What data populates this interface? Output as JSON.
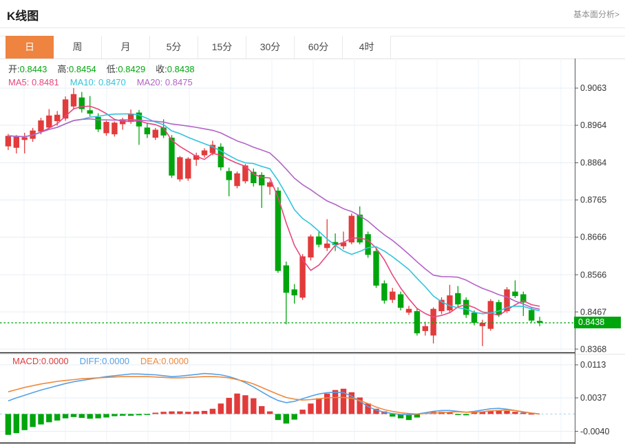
{
  "header": {
    "title": "K线图",
    "link": "基本面分析>"
  },
  "tabs": {
    "items": [
      "日",
      "周",
      "月",
      "5分",
      "15分",
      "30分",
      "60分",
      "4时"
    ],
    "active_index": 0
  },
  "ohlc": {
    "open_label": "开:",
    "open": "0.8443",
    "high_label": "高:",
    "high": "0.8454",
    "low_label": "低:",
    "low": "0.8429",
    "close_label": "收:",
    "close": "0.8438"
  },
  "ma": {
    "ma5_label": "MA5:",
    "ma5": "0.8481",
    "ma10_label": "MA10:",
    "ma10": "0.8470",
    "ma20_label": "MA20:",
    "ma20": "0.8475"
  },
  "macd_header": {
    "macd_label": "MACD:",
    "macd": "0.0000",
    "diff_label": "DIFF:",
    "diff": "0.0000",
    "dea_label": "DEA:",
    "dea": "0.0000"
  },
  "colors": {
    "up": "#e23b3b",
    "down": "#00a50d",
    "ma5": "#e8457c",
    "ma10": "#2ec4dd",
    "ma20": "#b263c6",
    "diff": "#56a0e5",
    "dea": "#f0883a",
    "tab_active": "#ee8440",
    "badge_bg": "#00a50d"
  },
  "chart_data": [
    {
      "type": "candlestick",
      "title": "K线图 (日)",
      "legend": [
        "MA5",
        "MA10",
        "MA20"
      ],
      "y_axis": {
        "ticks": [
          0.9063,
          0.8964,
          0.8864,
          0.8765,
          0.8666,
          0.8566,
          0.8467,
          0.8368
        ]
      },
      "last_price": 0.8438,
      "last_price_label": "0.8438",
      "ma_windows": [
        5,
        10,
        20
      ],
      "candles": [
        [
          0.8908,
          0.8941,
          0.8898,
          0.8936
        ],
        [
          0.8904,
          0.8938,
          0.8889,
          0.8933
        ],
        [
          0.8925,
          0.8944,
          0.8889,
          0.8932
        ],
        [
          0.8928,
          0.8957,
          0.892,
          0.895
        ],
        [
          0.8947,
          0.8984,
          0.894,
          0.8977
        ],
        [
          0.8958,
          0.9007,
          0.8953,
          0.899
        ],
        [
          0.8975,
          0.9002,
          0.8963,
          0.8992
        ],
        [
          0.8982,
          0.9041,
          0.8976,
          0.9033
        ],
        [
          0.9014,
          0.9063,
          0.9006,
          0.9047
        ],
        [
          0.9038,
          0.9053,
          0.8998,
          0.9007
        ],
        [
          0.9004,
          0.9042,
          0.8988,
          0.8995
        ],
        [
          0.8986,
          0.8996,
          0.8946,
          0.8953
        ],
        [
          0.8943,
          0.8976,
          0.8936,
          0.8973
        ],
        [
          0.894,
          0.8974,
          0.8934,
          0.8971
        ],
        [
          0.8967,
          0.8984,
          0.8952,
          0.898
        ],
        [
          0.8973,
          0.9006,
          0.8968,
          0.8995
        ],
        [
          0.8998,
          0.9005,
          0.8912,
          0.8961
        ],
        [
          0.8958,
          0.8969,
          0.893,
          0.894
        ],
        [
          0.8931,
          0.8957,
          0.8925,
          0.8952
        ],
        [
          0.8958,
          0.898,
          0.893,
          0.8937
        ],
        [
          0.8931,
          0.8938,
          0.8824,
          0.883
        ],
        [
          0.882,
          0.8882,
          0.8814,
          0.8879
        ],
        [
          0.8822,
          0.8879,
          0.8816,
          0.8875
        ],
        [
          0.8872,
          0.8891,
          0.8856,
          0.8884
        ],
        [
          0.8884,
          0.8903,
          0.8878,
          0.8897
        ],
        [
          0.889,
          0.8923,
          0.8884,
          0.8912
        ],
        [
          0.8907,
          0.8916,
          0.8844,
          0.8852
        ],
        [
          0.8842,
          0.8851,
          0.8775,
          0.8818
        ],
        [
          0.8802,
          0.8841,
          0.8796,
          0.8836
        ],
        [
          0.8815,
          0.8861,
          0.8809,
          0.8857
        ],
        [
          0.884,
          0.8849,
          0.8801,
          0.881
        ],
        [
          0.8832,
          0.8839,
          0.8744,
          0.8804
        ],
        [
          0.88,
          0.8816,
          0.8779,
          0.8812
        ],
        [
          0.879,
          0.8799,
          0.8571,
          0.8576
        ],
        [
          0.8591,
          0.8601,
          0.8434,
          0.8518
        ],
        [
          0.8527,
          0.8541,
          0.8489,
          0.8511
        ],
        [
          0.8505,
          0.8621,
          0.8499,
          0.8615
        ],
        [
          0.8612,
          0.8673,
          0.8604,
          0.8668
        ],
        [
          0.8668,
          0.8681,
          0.8639,
          0.8646
        ],
        [
          0.8637,
          0.8714,
          0.8629,
          0.8649
        ],
        [
          0.8653,
          0.8676,
          0.8629,
          0.8645
        ],
        [
          0.8642,
          0.8681,
          0.8634,
          0.8652
        ],
        [
          0.8652,
          0.8729,
          0.8647,
          0.8723
        ],
        [
          0.8726,
          0.8748,
          0.8647,
          0.8652
        ],
        [
          0.8674,
          0.8681,
          0.8611,
          0.8619
        ],
        [
          0.8629,
          0.8636,
          0.8531,
          0.8537
        ],
        [
          0.8543,
          0.8551,
          0.8489,
          0.8497
        ],
        [
          0.8499,
          0.8531,
          0.8491,
          0.8521
        ],
        [
          0.8514,
          0.8521,
          0.8471,
          0.8478
        ],
        [
          0.8465,
          0.8483,
          0.8459,
          0.8475
        ],
        [
          0.8469,
          0.8477,
          0.8404,
          0.841
        ],
        [
          0.8416,
          0.8441,
          0.8404,
          0.8429
        ],
        [
          0.8404,
          0.8479,
          0.8383,
          0.8475
        ],
        [
          0.8469,
          0.8506,
          0.8461,
          0.8499
        ],
        [
          0.8471,
          0.8539,
          0.8464,
          0.8511
        ],
        [
          0.8517,
          0.8536,
          0.8481,
          0.8487
        ],
        [
          0.8499,
          0.8506,
          0.8451,
          0.8459
        ],
        [
          0.8465,
          0.8471,
          0.8431,
          0.8438
        ],
        [
          0.8429,
          0.8446,
          0.8376,
          0.8438
        ],
        [
          0.8422,
          0.8501,
          0.8417,
          0.8496
        ],
        [
          0.8493,
          0.8499,
          0.8454,
          0.8459
        ],
        [
          0.8469,
          0.8533,
          0.8464,
          0.8527
        ],
        [
          0.8521,
          0.8551,
          0.8504,
          0.8509
        ],
        [
          0.8514,
          0.8521,
          0.8456,
          0.8492
        ],
        [
          0.8472,
          0.8479,
          0.8439,
          0.8444
        ],
        [
          0.8443,
          0.8454,
          0.8429,
          0.8438
        ]
      ]
    },
    {
      "type": "bar",
      "title": "MACD",
      "y_axis": {
        "ticks": [
          0.0113,
          0.0037,
          -0.004
        ]
      },
      "hist": [
        -0.0048,
        -0.0044,
        -0.0037,
        -0.003,
        -0.0024,
        -0.0019,
        -0.0015,
        -0.001,
        -0.0007,
        -0.0009,
        -0.0011,
        -0.001,
        -0.0008,
        -0.0005,
        -0.0004,
        -0.0004,
        -0.0003,
        -0.0002,
        0.0003,
        0.0005,
        0.0006,
        0.0006,
        0.0005,
        0.0006,
        0.0007,
        0.0012,
        0.0024,
        0.0037,
        0.0047,
        0.0043,
        0.0036,
        0.0018,
        0.0006,
        -0.0014,
        -0.0022,
        -0.0013,
        0.001,
        0.0024,
        0.0036,
        0.0047,
        0.0055,
        0.0058,
        0.005,
        0.0038,
        0.0024,
        0.0012,
        0.0006,
        -0.0006,
        -0.001,
        -0.0014,
        -0.0008,
        0.0003,
        0.0005,
        0.0005,
        0.0003,
        -0.0002,
        -0.0003,
        0.0004,
        0.0006,
        0.0008,
        0.0009,
        0.0007,
        0.0005,
        0.0003,
        0.0001,
        0.0
      ],
      "diff": [
        0.003,
        0.0037,
        0.0043,
        0.0049,
        0.0055,
        0.006,
        0.0065,
        0.007,
        0.0074,
        0.0077,
        0.008,
        0.0083,
        0.0086,
        0.0088,
        0.009,
        0.0092,
        0.0092,
        0.0091,
        0.009,
        0.0088,
        0.0086,
        0.0087,
        0.0089,
        0.0091,
        0.0093,
        0.0092,
        0.009,
        0.0086,
        0.008,
        0.0072,
        0.0062,
        0.0051,
        0.004,
        0.0031,
        0.0026,
        0.0029,
        0.0035,
        0.0041,
        0.0046,
        0.0049,
        0.005,
        0.0049,
        0.0041,
        0.0029,
        0.0017,
        0.0009,
        0.0004,
        0.0001,
        -0.0001,
        -0.0002,
        0.0,
        0.0003,
        0.0006,
        0.0008,
        0.0008,
        0.0006,
        0.0004,
        0.0006,
        0.0009,
        0.0012,
        0.0013,
        0.0011,
        0.0008,
        0.0004,
        0.0002,
        0.0
      ],
      "dea": [
        0.0051,
        0.0056,
        0.0061,
        0.0065,
        0.0069,
        0.0072,
        0.0075,
        0.0077,
        0.0079,
        0.0081,
        0.0082,
        0.0083,
        0.0084,
        0.0085,
        0.0086,
        0.0086,
        0.0086,
        0.0086,
        0.0085,
        0.0084,
        0.0083,
        0.0083,
        0.0084,
        0.0085,
        0.0086,
        0.0086,
        0.0085,
        0.0083,
        0.0079,
        0.0075,
        0.0069,
        0.0061,
        0.0053,
        0.0045,
        0.0038,
        0.0034,
        0.0032,
        0.0033,
        0.0035,
        0.0037,
        0.0038,
        0.0038,
        0.0036,
        0.0031,
        0.0024,
        0.0016,
        0.001,
        0.0006,
        0.0003,
        0.0001,
        0.0,
        0.0001,
        0.0002,
        0.0003,
        0.0004,
        0.0005,
        0.0004,
        0.0004,
        0.0005,
        0.0007,
        0.0008,
        0.0009,
        0.0008,
        0.0005,
        0.0002,
        0.0
      ]
    }
  ]
}
